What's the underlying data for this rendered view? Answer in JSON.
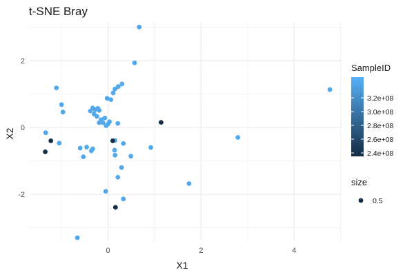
{
  "chart_data": {
    "type": "scatter",
    "title": "t-SNE Bray",
    "xlabel": "X1",
    "ylabel": "X2",
    "xlim": [
      -1.7,
      5.05
    ],
    "ylim": [
      -3.4,
      3.15
    ],
    "x_ticks": [
      0,
      2,
      4
    ],
    "y_ticks": [
      -2,
      0,
      2
    ],
    "x_tick_labels": [
      "0",
      "2",
      "4"
    ],
    "y_tick_labels": [
      "-2",
      "0",
      "2"
    ],
    "grid": true,
    "colors": {
      "low": "#132B43",
      "high": "#56B1F7",
      "grid": "#ebebeb"
    },
    "color_legend": {
      "title": "SampleID",
      "range": [
        235000000,
        350000000
      ],
      "ticks": [
        240000000,
        260000000,
        280000000,
        300000000,
        320000000
      ],
      "labels": [
        "2.4e+08",
        "2.6e+08",
        "2.8e+08",
        "3.0e+08",
        "3.2e+08"
      ]
    },
    "size_legend": {
      "title": "size",
      "label": "0.5"
    },
    "points": [
      {
        "x": 0.67,
        "y": 3.0,
        "c": 342000000
      },
      {
        "x": 0.57,
        "y": 1.93,
        "c": 342000000
      },
      {
        "x": 4.77,
        "y": 1.13,
        "c": 342000000
      },
      {
        "x": -1.11,
        "y": 1.18,
        "c": 342000000
      },
      {
        "x": 0.3,
        "y": 1.3,
        "c": 342000000
      },
      {
        "x": 0.22,
        "y": 1.22,
        "c": 342000000
      },
      {
        "x": 0.15,
        "y": 1.15,
        "c": 342000000
      },
      {
        "x": 0.11,
        "y": 1.03,
        "c": 342000000
      },
      {
        "x": -0.02,
        "y": 0.87,
        "c": 342000000
      },
      {
        "x": 0.06,
        "y": 0.83,
        "c": 342000000
      },
      {
        "x": -1.0,
        "y": 0.68,
        "c": 342000000
      },
      {
        "x": -0.97,
        "y": 0.46,
        "c": 342000000
      },
      {
        "x": -0.38,
        "y": 0.49,
        "c": 342000000
      },
      {
        "x": -0.33,
        "y": 0.58,
        "c": 342000000
      },
      {
        "x": -0.28,
        "y": 0.53,
        "c": 342000000
      },
      {
        "x": -0.22,
        "y": 0.57,
        "c": 342000000
      },
      {
        "x": -0.19,
        "y": 0.51,
        "c": 342000000
      },
      {
        "x": -0.3,
        "y": 0.4,
        "c": 342000000
      },
      {
        "x": -0.24,
        "y": 0.33,
        "c": 342000000
      },
      {
        "x": -0.15,
        "y": 0.23,
        "c": 342000000
      },
      {
        "x": -0.07,
        "y": 0.28,
        "c": 342000000
      },
      {
        "x": -0.19,
        "y": 0.14,
        "c": 342000000
      },
      {
        "x": -0.11,
        "y": 0.14,
        "c": 342000000
      },
      {
        "x": -0.04,
        "y": 0.05,
        "c": 342000000
      },
      {
        "x": 0.0,
        "y": 0.1,
        "c": 342000000
      },
      {
        "x": 0.03,
        "y": 0.17,
        "c": 342000000
      },
      {
        "x": 0.21,
        "y": 0.12,
        "c": 342000000
      },
      {
        "x": -1.34,
        "y": -0.16,
        "c": 342000000
      },
      {
        "x": -1.05,
        "y": -0.47,
        "c": 342000000
      },
      {
        "x": 0.33,
        "y": -0.48,
        "c": 342000000
      },
      {
        "x": 0.15,
        "y": -0.39,
        "c": 342000000
      },
      {
        "x": -0.6,
        "y": -0.62,
        "c": 342000000
      },
      {
        "x": -0.46,
        "y": -0.59,
        "c": 342000000
      },
      {
        "x": -0.36,
        "y": -0.7,
        "c": 342000000
      },
      {
        "x": -0.33,
        "y": -0.64,
        "c": 342000000
      },
      {
        "x": 0.14,
        "y": -0.68,
        "c": 342000000
      },
      {
        "x": 0.92,
        "y": -0.6,
        "c": 342000000
      },
      {
        "x": 0.15,
        "y": -0.83,
        "c": 342000000
      },
      {
        "x": 0.49,
        "y": -0.86,
        "c": 342000000
      },
      {
        "x": -0.53,
        "y": -0.88,
        "c": 342000000
      },
      {
        "x": 2.79,
        "y": -0.3,
        "c": 342000000
      },
      {
        "x": 0.29,
        "y": -1.2,
        "c": 342000000
      },
      {
        "x": 0.21,
        "y": -1.49,
        "c": 342000000
      },
      {
        "x": 1.74,
        "y": -1.68,
        "c": 342000000
      },
      {
        "x": -0.05,
        "y": -1.91,
        "c": 342000000
      },
      {
        "x": 0.33,
        "y": -2.14,
        "c": 342000000
      },
      {
        "x": -0.66,
        "y": -3.3,
        "c": 342000000
      },
      {
        "x": 1.14,
        "y": 0.15,
        "c": 236000000
      },
      {
        "x": -1.23,
        "y": -0.4,
        "c": 236000000
      },
      {
        "x": -1.35,
        "y": -0.73,
        "c": 236000000
      },
      {
        "x": 0.1,
        "y": -0.4,
        "c": 236000000
      },
      {
        "x": 0.16,
        "y": -2.39,
        "c": 236000000
      }
    ]
  }
}
